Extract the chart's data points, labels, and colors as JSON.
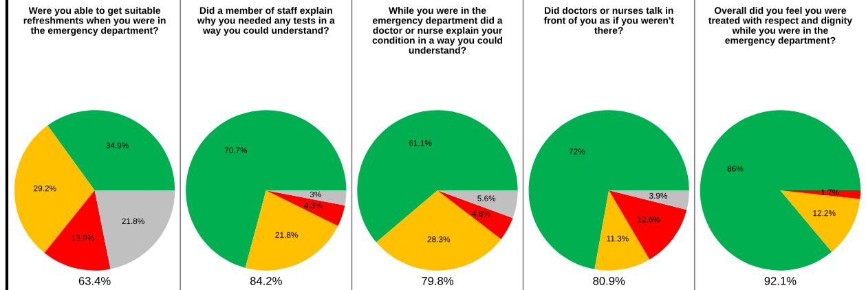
{
  "chart_data": [
    {
      "type": "pie",
      "title": "Were you able to get suitable refreshments when you were in the emergency department?",
      "categories": [
        null,
        null,
        null,
        null
      ],
      "values": [
        34.9,
        29.2,
        13.9,
        21.8
      ],
      "colors": [
        "#00b050",
        "#ffc000",
        "#ff0000",
        "#c0c0c0"
      ],
      "value_labels": [
        "34.9%",
        "29.2%",
        "13.9%",
        "21.8%"
      ],
      "annotations": [
        "63.4%"
      ]
    },
    {
      "type": "pie",
      "title": "Did a member of staff explain why you needed any tests in a way you could understand?",
      "categories": [
        null,
        null,
        null,
        null
      ],
      "values": [
        70.7,
        21.8,
        4.3,
        3
      ],
      "colors": [
        "#00b050",
        "#ffc000",
        "#ff0000",
        "#c0c0c0"
      ],
      "value_labels": [
        "70.7%",
        "21.8%",
        "4.3%",
        "3%"
      ],
      "annotations": [
        "84.2%"
      ]
    },
    {
      "type": "pie",
      "title": "While you were in the emergency department did a doctor or nurse explain your condition in a way you could understand?",
      "categories": [
        null,
        null,
        null,
        null
      ],
      "values": [
        61.1,
        28.3,
        4.8,
        5.6
      ],
      "colors": [
        "#00b050",
        "#ffc000",
        "#ff0000",
        "#c0c0c0"
      ],
      "value_labels": [
        "61.1%",
        "28.3%",
        "4.8%",
        "5.6%"
      ],
      "annotations": [
        "79.8%"
      ]
    },
    {
      "type": "pie",
      "title": "Did doctors or nurses talk in front of you as if you weren't there?",
      "categories": [
        null,
        null,
        null,
        null
      ],
      "values": [
        72,
        11.3,
        12.6,
        3.9
      ],
      "colors": [
        "#00b050",
        "#ffc000",
        "#ff0000",
        "#c0c0c0"
      ],
      "value_labels": [
        "72%",
        "11.3%",
        "12.6%",
        "3.9%"
      ],
      "annotations": [
        "80.9%"
      ]
    },
    {
      "type": "pie",
      "title": "Overall did you feel you were treated with respect and dignity while you were in the emergency department?",
      "categories": [
        null,
        null,
        null
      ],
      "values": [
        86,
        12.2,
        1.7
      ],
      "colors": [
        "#00b050",
        "#ffc000",
        "#ff0000"
      ],
      "value_labels": [
        "86%",
        "12.2%",
        "1.7%"
      ],
      "annotations": [
        "92.1%"
      ]
    }
  ]
}
